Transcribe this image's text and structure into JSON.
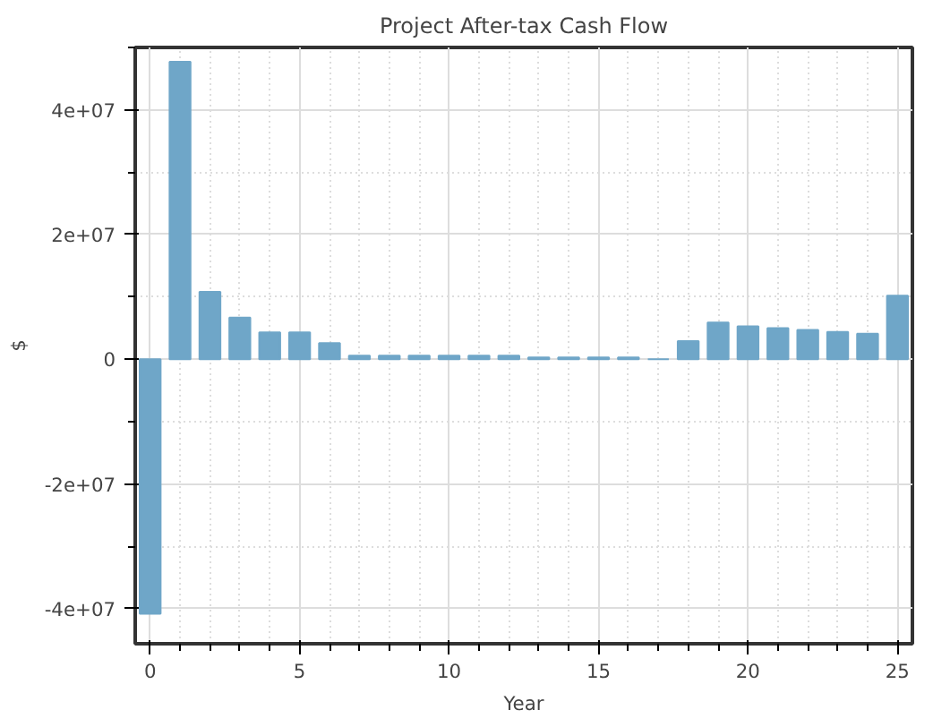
{
  "chart_data": {
    "type": "bar",
    "title": "Project After-tax Cash Flow",
    "xlabel": "Year",
    "ylabel": "$",
    "x": [
      0,
      1,
      2,
      3,
      4,
      5,
      6,
      7,
      8,
      9,
      10,
      11,
      12,
      13,
      14,
      15,
      16,
      17,
      18,
      19,
      20,
      21,
      22,
      23,
      24,
      25
    ],
    "series": [
      {
        "color": "#6fa6c8",
        "values": [
          -40800000,
          47700000,
          10800000,
          6700000,
          4300000,
          4300000,
          2600000,
          600000,
          600000,
          600000,
          600000,
          600000,
          600000,
          300000,
          300000,
          300000,
          300000,
          0,
          2900000,
          5900000,
          5300000,
          5000000,
          4700000,
          4400000,
          4100000,
          10200000
        ]
      }
    ],
    "xlim": [
      -0.5,
      25.5
    ],
    "xticks": [
      0,
      5,
      10,
      15,
      20,
      25
    ],
    "ylim": [
      -45600000,
      50000000
    ],
    "yticks": [
      {
        "value": -40000000,
        "label": "-4e+07"
      },
      {
        "value": -20000000,
        "label": "-2e+07"
      },
      {
        "value": 0,
        "label": "0"
      },
      {
        "value": 20000000,
        "label": "2e+07"
      },
      {
        "value": 40000000,
        "label": "4e+07"
      }
    ],
    "grid": true
  }
}
